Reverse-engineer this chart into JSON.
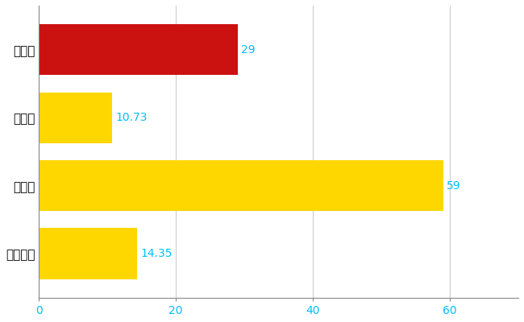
{
  "categories": [
    "一関市",
    "県平均",
    "県最大",
    "全国平均"
  ],
  "values": [
    29,
    10.73,
    59,
    14.35
  ],
  "bar_colors": [
    "#CC1111",
    "#FFD700",
    "#FFD700",
    "#FFD700"
  ],
  "value_labels": [
    "29",
    "10.73",
    "59",
    "14.35"
  ],
  "value_label_color": "#00BFFF",
  "xlim": [
    0,
    70
  ],
  "xticks": [
    0,
    20,
    40,
    60
  ],
  "xtick_color": "#00BFFF",
  "grid_color": "#CCCCCC",
  "background_color": "#FFFFFF",
  "bar_height": 0.75,
  "label_fontsize": 10,
  "tick_fontsize": 10,
  "ytick_fontsize": 11
}
